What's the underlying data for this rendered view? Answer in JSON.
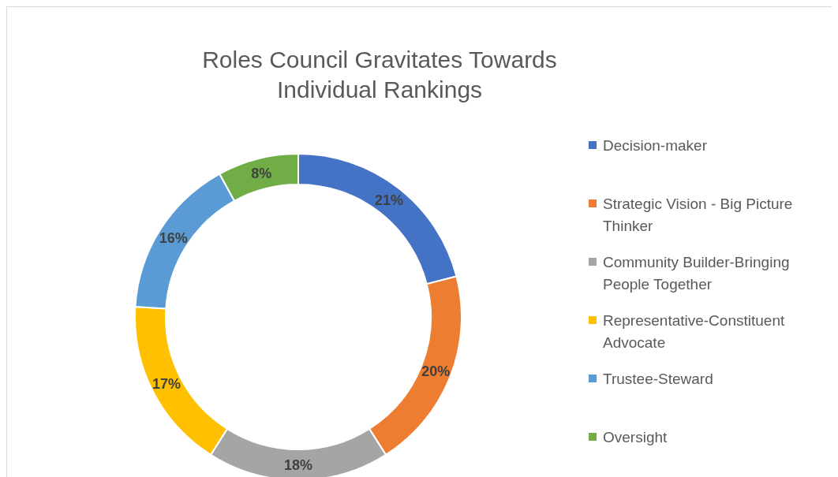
{
  "chart_data": {
    "type": "donut",
    "title": "Roles Council Gravitates Towards Individual Rankings",
    "categories": [
      "Decision-maker",
      "Strategic Vision - Big Picture Thinker",
      "Community Builder-Bringing People Together",
      "Representative-Constituent Advocate",
      "Trustee-Steward",
      "Oversight"
    ],
    "values": [
      21,
      20,
      18,
      17,
      16,
      8
    ],
    "colors": [
      "#4472c4",
      "#ed7d31",
      "#a5a5a5",
      "#ffc000",
      "#5b9bd5",
      "#70ad47"
    ],
    "value_labels": [
      "21%",
      "20%",
      "18%",
      "17%",
      "16%",
      "8%"
    ],
    "legend": "right"
  }
}
